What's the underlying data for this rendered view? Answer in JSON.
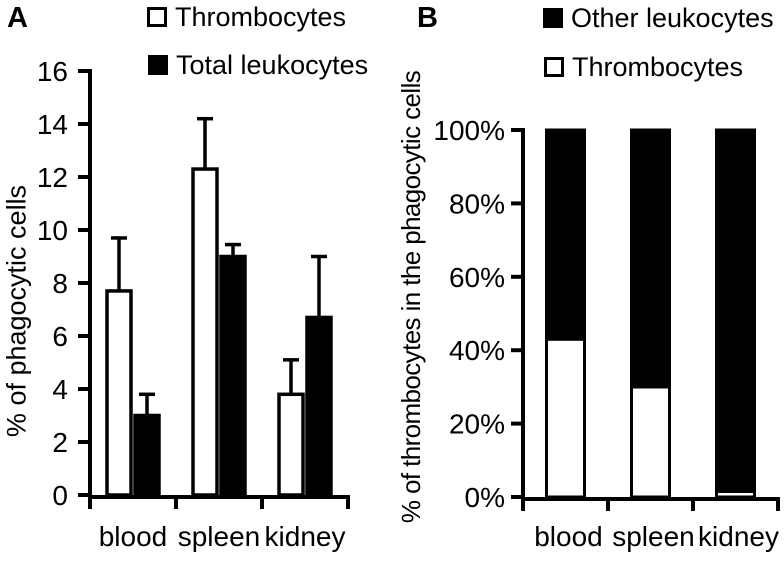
{
  "figure": {
    "panels": {
      "a": {
        "label": "A",
        "ylabel": "% of phagocytic cells",
        "legend": [
          {
            "label": "Thrombocytes",
            "fill": "#ffffff"
          },
          {
            "label": "Total leukocytes",
            "fill": "#000000"
          }
        ]
      },
      "b": {
        "label": "B",
        "ylabel": "% of thrombocytes in the phagocytic cells",
        "legend": [
          {
            "label": "Other leukocytes",
            "fill": "#000000"
          },
          {
            "label": "Thrombocytes",
            "fill": "#ffffff"
          }
        ]
      }
    },
    "colors": {
      "foreground": "#000000",
      "background": "#ffffff"
    }
  },
  "chart_data": [
    {
      "id": "A",
      "type": "bar",
      "subtype": "grouped-with-error-bars",
      "title": "",
      "xlabel": "",
      "ylabel": "% of phagocytic cells",
      "ylim": [
        0,
        16
      ],
      "ytick_step": 2,
      "ytick_suffix": "",
      "grid": false,
      "legend_position": "top",
      "categories": [
        "blood",
        "spleen",
        "kidney"
      ],
      "series": [
        {
          "name": "Thrombocytes",
          "fill": "#ffffff",
          "values": [
            7.7,
            12.3,
            3.8
          ],
          "errors": [
            2.0,
            1.9,
            1.3
          ]
        },
        {
          "name": "Total leukocytes",
          "fill": "#000000",
          "values": [
            3.0,
            9.0,
            6.7
          ],
          "errors": [
            0.8,
            0.45,
            2.3
          ]
        }
      ]
    },
    {
      "id": "B",
      "type": "bar",
      "subtype": "stacked-100-percent",
      "title": "",
      "xlabel": "",
      "ylabel": "% of thrombocytes in the phagocytic cells",
      "ylim": [
        0,
        100
      ],
      "ytick_step": 20,
      "ytick_suffix": "%",
      "grid": false,
      "legend_position": "top",
      "categories": [
        "blood",
        "spleen",
        "kidney"
      ],
      "series": [
        {
          "name": "Thrombocytes",
          "fill": "#ffffff",
          "values": [
            43,
            30,
            1.5
          ]
        },
        {
          "name": "Other leukocytes",
          "fill": "#000000",
          "values": [
            57,
            70,
            98.5
          ]
        }
      ]
    }
  ]
}
